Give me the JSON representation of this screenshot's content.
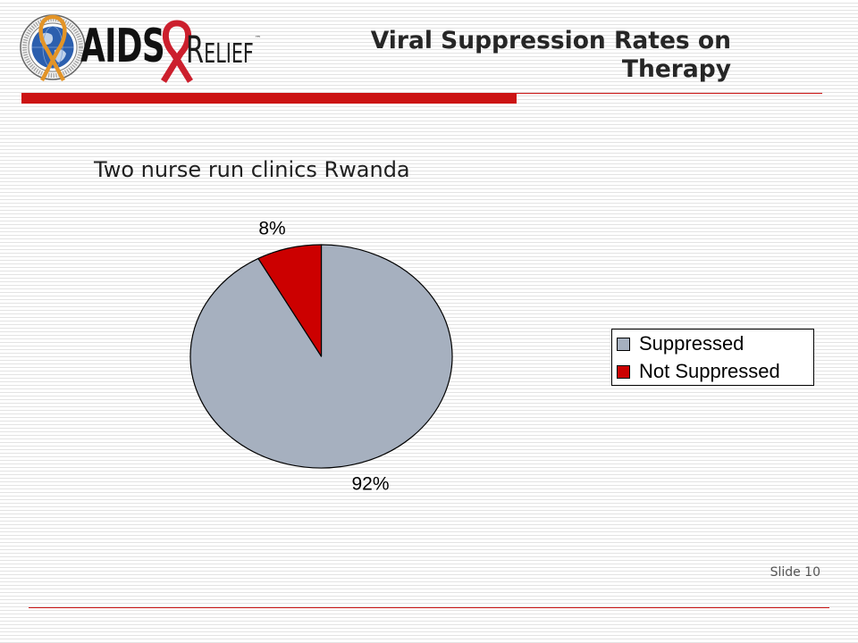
{
  "logo": {
    "wordmark_left": "AIDS",
    "wordmark_right": "RELIEF",
    "trademark": "™",
    "icons": [
      "globe-seal-icon",
      "red-ribbon-icon"
    ],
    "ribbon_color": "#CC1F2D",
    "seal_ribbon_color": "#E39427",
    "globe_color": "#2C5FAE"
  },
  "slide": {
    "title": "Viral Suppression Rates on Therapy",
    "subtitle": "Two nurse run clinics Rwanda",
    "footer_label": "Slide 10",
    "accent_color": "#CC1414"
  },
  "chart_data": {
    "type": "pie",
    "categories": [
      "Suppressed",
      "Not Suppressed"
    ],
    "values": [
      92,
      8
    ],
    "data_labels": [
      "92%",
      "8%"
    ],
    "colors": [
      "#A6B0BF",
      "#CC0000"
    ],
    "legend": "right"
  }
}
